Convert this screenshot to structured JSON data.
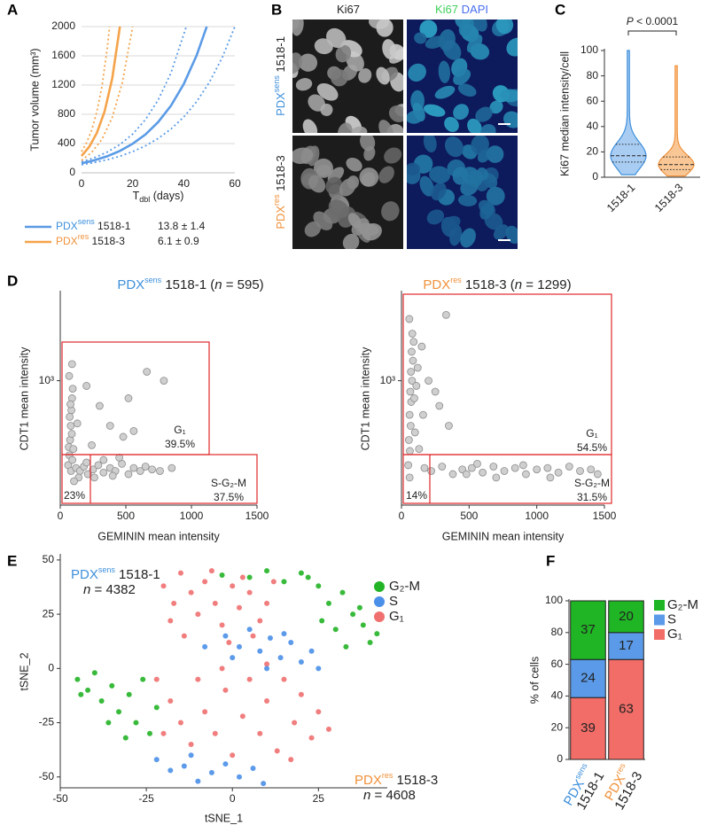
{
  "figure": {
    "panel_labels": [
      "A",
      "B",
      "C",
      "D",
      "E",
      "F"
    ],
    "microscopy": {
      "headers": [
        {
          "parts": [
            "Ki67"
          ],
          "styles": [
            "normal"
          ]
        },
        {
          "parts": [
            "Ki67",
            " DAPI"
          ],
          "styles": [
            "green",
            "blue"
          ]
        }
      ],
      "rows": [
        {
          "parts": [
            "PDX",
            "sens",
            " 1518-1"
          ],
          "styles": [
            "sens",
            "sens sup",
            "normal"
          ]
        },
        {
          "parts": [
            "PDX",
            "res",
            " 1518-3"
          ],
          "styles": [
            "res",
            "res sup",
            "normal"
          ]
        }
      ]
    }
  },
  "chart_data": [
    {
      "type": "line",
      "ylabel": "Tumor volume (mm³)",
      "xlabel": {
        "parts": [
          "T",
          "dbl",
          " (days)"
        ],
        "styles": [
          "normal",
          "sub",
          "normal"
        ]
      },
      "xlim": [
        0,
        60
      ],
      "xticks": [
        0,
        20,
        40,
        60
      ],
      "ylim": [
        0,
        2000
      ],
      "yticks": [
        0,
        400,
        800,
        1200,
        1600,
        2000
      ],
      "grid": true,
      "series": [
        {
          "name": {
            "parts": [
              "PDX",
              "sens",
              " 1518-1"
            ],
            "styles": [
              "sens",
              "sens sup",
              "normal"
            ]
          },
          "stat": "13.8 ± 1.4",
          "color": "#5b9be6",
          "x": [
            0,
            5,
            10,
            15,
            20,
            25,
            30,
            35,
            40,
            45,
            49
          ],
          "values": [
            130,
            171,
            226,
            300,
            397,
            524,
            694,
            917,
            1213,
            1604,
            2000
          ],
          "bounds": [
            {
              "x": [
                0,
                5,
                10,
                15,
                20,
                25,
                30,
                35,
                41
              ],
              "values": [
                150,
                206,
                282,
                387,
                530,
                727,
                996,
                1366,
                2000
              ]
            },
            {
              "x": [
                0,
                5,
                10,
                15,
                20,
                25,
                30,
                35,
                40,
                45,
                50,
                55,
                60
              ],
              "values": [
                110,
                140,
                178,
                227,
                290,
                369,
                470,
                599,
                763,
                972,
                1237,
                1572,
                2000
              ]
            }
          ]
        },
        {
          "name": {
            "parts": [
              "PDX",
              "res",
              " 1518-3"
            ],
            "styles": [
              "res",
              "res sup",
              "normal"
            ]
          },
          "stat": "6.1 ± 0.9",
          "color": "#f5a34a",
          "x": [
            0,
            3,
            6,
            9,
            12,
            15
          ],
          "values": [
            230,
            356,
            546,
            839,
            1288,
            2000
          ],
          "bounds": [
            {
              "x": [
                0,
                2,
                4,
                6,
                8,
                10,
                11
              ],
              "values": [
                290,
                413,
                584,
                836,
                1184,
                1686,
                2000
              ]
            },
            {
              "x": [
                0,
                4,
                8,
                12,
                16,
                20
              ],
              "values": [
                170,
                280,
                459,
                755,
                1238,
                2000
              ]
            }
          ]
        }
      ]
    },
    {
      "type": "violin",
      "ylabel": "Ki67 median intensity/cell",
      "annotation": {
        "parts": [
          "P",
          " < 0.0001"
        ],
        "styles": [
          "italic",
          "normal"
        ]
      },
      "categories": [
        "1518-1",
        "1518-3"
      ],
      "colors": [
        "#3d8fdc",
        "#f0913a"
      ],
      "fills": [
        "#a9cdf2",
        "#f9c796"
      ],
      "groups": [
        {
          "min": 2,
          "q1": 12,
          "median": 17,
          "q3": 26,
          "max": 100
        },
        {
          "min": 1,
          "q1": 6,
          "median": 10,
          "q3": 16,
          "max": 88
        }
      ],
      "ylim": [
        0,
        100
      ],
      "yticks": [
        0,
        20,
        40,
        60,
        80,
        100
      ]
    },
    {
      "type": "scatter",
      "log_y": true,
      "title": {
        "parts": [
          "PDX",
          "sens",
          " 1518-1 (",
          "n",
          " = 595)"
        ],
        "styles": [
          "sens",
          "sens sup",
          "normal",
          "italic",
          "normal"
        ]
      },
      "xlabel": "GEMININ mean intensity",
      "ylabel": "CDT1 mean intensity",
      "color": "#cfcfcf",
      "xlim": [
        0,
        1500
      ],
      "xticks": [
        0,
        500,
        1000,
        1500
      ],
      "ylim": [
        80,
        6000
      ],
      "yticks": [
        {
          "value": 1000,
          "label": "10³"
        }
      ],
      "gate_labels": [
        "G₁",
        "39.5%",
        "S-G₂-M",
        "37.5%",
        "23%"
      ],
      "x": [
        60,
        70,
        75,
        80,
        85,
        90,
        95,
        65,
        72,
        88,
        78,
        82,
        92,
        68,
        100,
        120,
        150,
        180,
        210,
        250,
        290,
        330,
        380,
        420,
        470,
        520,
        560,
        610,
        650,
        700,
        760,
        140,
        200,
        260,
        330,
        400,
        450,
        300,
        520,
        380,
        480,
        660,
        790,
        200,
        130,
        105,
        90,
        240,
        560,
        850
      ],
      "values": [
        180,
        220,
        300,
        400,
        550,
        700,
        850,
        260,
        480,
        340,
        620,
        160,
        200,
        1100,
        250,
        170,
        160,
        175,
        150,
        165,
        180,
        155,
        170,
        160,
        185,
        150,
        170,
        160,
        175,
        165,
        160,
        140,
        190,
        140,
        200,
        145,
        210,
        600,
        700,
        400,
        320,
        1200,
        1000,
        900,
        420,
        130,
        1400,
        270,
        360,
        170
      ]
    },
    {
      "type": "scatter",
      "log_y": true,
      "title": {
        "parts": [
          "PDX",
          "res",
          " 1518-3 (",
          "n",
          " = 1299)"
        ],
        "styles": [
          "res",
          "res sup",
          "normal",
          "italic",
          "normal"
        ]
      },
      "xlabel": "GEMININ mean intensity",
      "ylabel": "CDT1 mean intensity",
      "color": "#cfcfcf",
      "xlim": [
        0,
        1500
      ],
      "xticks": [
        0,
        500,
        1000,
        1500
      ],
      "ylim": [
        80,
        6000
      ],
      "yticks": [
        {
          "value": 1000,
          "label": "10³"
        }
      ],
      "gate_labels": [
        "G₁",
        "54.5%",
        "S-G₂-M",
        "31.5%",
        "14%"
      ],
      "x": [
        50,
        55,
        60,
        65,
        70,
        75,
        80,
        58,
        62,
        68,
        72,
        78,
        85,
        90,
        95,
        100,
        110,
        120,
        150,
        200,
        250,
        330,
        280,
        350,
        160,
        130,
        170,
        220,
        300,
        380,
        450,
        520,
        600,
        680,
        760,
        840,
        920,
        1000,
        1080,
        1160,
        1240,
        1320,
        1400,
        1450,
        480,
        560,
        900,
        1100,
        700,
        60
      ],
      "values": [
        180,
        300,
        500,
        800,
        1200,
        1800,
        2600,
        3500,
        240,
        400,
        650,
        1000,
        1500,
        2200,
        700,
        350,
        900,
        1300,
        2000,
        1000,
        800,
        3800,
        600,
        400,
        500,
        250,
        170,
        160,
        175,
        150,
        165,
        170,
        155,
        175,
        160,
        170,
        150,
        165,
        170,
        155,
        175,
        160,
        165,
        150,
        150,
        185,
        180,
        140,
        140,
        140
      ]
    },
    {
      "type": "scatter",
      "xlabel": "tSNE_1",
      "ylabel": "tSNE_2",
      "xlim": [
        -50,
        45
      ],
      "xticks": [
        -50,
        -25,
        0,
        25
      ],
      "ylim": [
        -55,
        52
      ],
      "yticks": [
        -50,
        -25,
        0,
        25,
        50
      ],
      "annotations": [
        {
          "parts": [
            "PDX",
            "sens",
            " 1518-1"
          ],
          "styles": [
            "sens",
            "sens sup",
            "normal"
          ]
        },
        {
          "parts": [
            "n",
            " = 4382"
          ],
          "styles": [
            "italic",
            "normal"
          ]
        },
        {
          "parts": [
            "PDX",
            "res",
            " 1518-3"
          ],
          "styles": [
            "res",
            "res sup",
            "normal"
          ]
        },
        {
          "parts": [
            "n",
            " = 4608"
          ],
          "styles": [
            "italic",
            "normal"
          ]
        }
      ],
      "series": [
        {
          "name": "G₂-M",
          "color": "#22b326",
          "x": [
            5,
            10,
            15,
            20,
            25,
            28,
            32,
            35,
            38,
            40,
            30,
            26,
            33,
            37,
            22,
            -3,
            42,
            -45,
            -42,
            -40,
            -38,
            -35,
            -33,
            -30,
            -28,
            -26,
            -24,
            -36,
            -44,
            -31,
            -22
          ],
          "values": [
            42,
            45,
            40,
            44,
            38,
            30,
            35,
            25,
            20,
            12,
            18,
            22,
            10,
            28,
            42,
            43,
            16,
            -5,
            -10,
            -2,
            -15,
            -8,
            -20,
            -12,
            -25,
            -5,
            -30,
            -25,
            -12,
            -32,
            -18
          ]
        },
        {
          "name": "S",
          "color": "#4a8fe8",
          "x": [
            -2,
            2,
            5,
            8,
            11,
            14,
            17,
            20,
            23,
            25,
            -8,
            0,
            10,
            15,
            -22,
            -18,
            -14,
            -10,
            -6,
            -2,
            2,
            6,
            9,
            -12
          ],
          "values": [
            15,
            10,
            18,
            8,
            14,
            5,
            12,
            3,
            8,
            0,
            10,
            5,
            0,
            16,
            -42,
            -47,
            -45,
            -52,
            -48,
            -44,
            -50,
            -46,
            -53,
            -40
          ]
        },
        {
          "name": "G₁",
          "color": "#f07070",
          "x": [
            -20,
            -17,
            -15,
            -12,
            -10,
            -8,
            -5,
            -3,
            0,
            2,
            5,
            8,
            10,
            -18,
            -14,
            -6,
            3,
            12,
            -1,
            6,
            -22,
            -18,
            -15,
            -12,
            -10,
            -8,
            -5,
            -2,
            0,
            3,
            5,
            8,
            10,
            13,
            15,
            18,
            20,
            23,
            25,
            28,
            -3,
            10,
            -20,
            17
          ],
          "values": [
            38,
            30,
            44,
            35,
            25,
            40,
            30,
            20,
            38,
            28,
            35,
            22,
            30,
            22,
            15,
            45,
            42,
            40,
            12,
            15,
            -5,
            -15,
            -25,
            -35,
            -5,
            -20,
            -30,
            -10,
            -40,
            -22,
            -5,
            -30,
            -15,
            -38,
            -5,
            -25,
            -12,
            -32,
            -20,
            -28,
            0,
            2,
            -30,
            -42
          ]
        }
      ]
    },
    {
      "type": "stacked_bar",
      "ylabel": "% of cells",
      "categories": [
        "1518-1",
        "1518-3"
      ],
      "category_labels": [
        {
          "parts": [
            "PDX",
            "sens"
          ],
          "styles": [
            "sens",
            "sens sup"
          ]
        },
        {
          "parts": [
            "PDX",
            "res"
          ],
          "styles": [
            "res",
            "res sup"
          ]
        }
      ],
      "ylim": [
        0,
        100
      ],
      "yticks": [
        0,
        20,
        40,
        60,
        80,
        100
      ],
      "series": [
        {
          "name": "G₁",
          "color": "#f26d68",
          "values": [
            39,
            63
          ]
        },
        {
          "name": "S",
          "color": "#5a9ae8",
          "values": [
            24,
            17
          ]
        },
        {
          "name": "G₂-M",
          "color": "#1fb524",
          "values": [
            37,
            20
          ]
        }
      ]
    }
  ]
}
